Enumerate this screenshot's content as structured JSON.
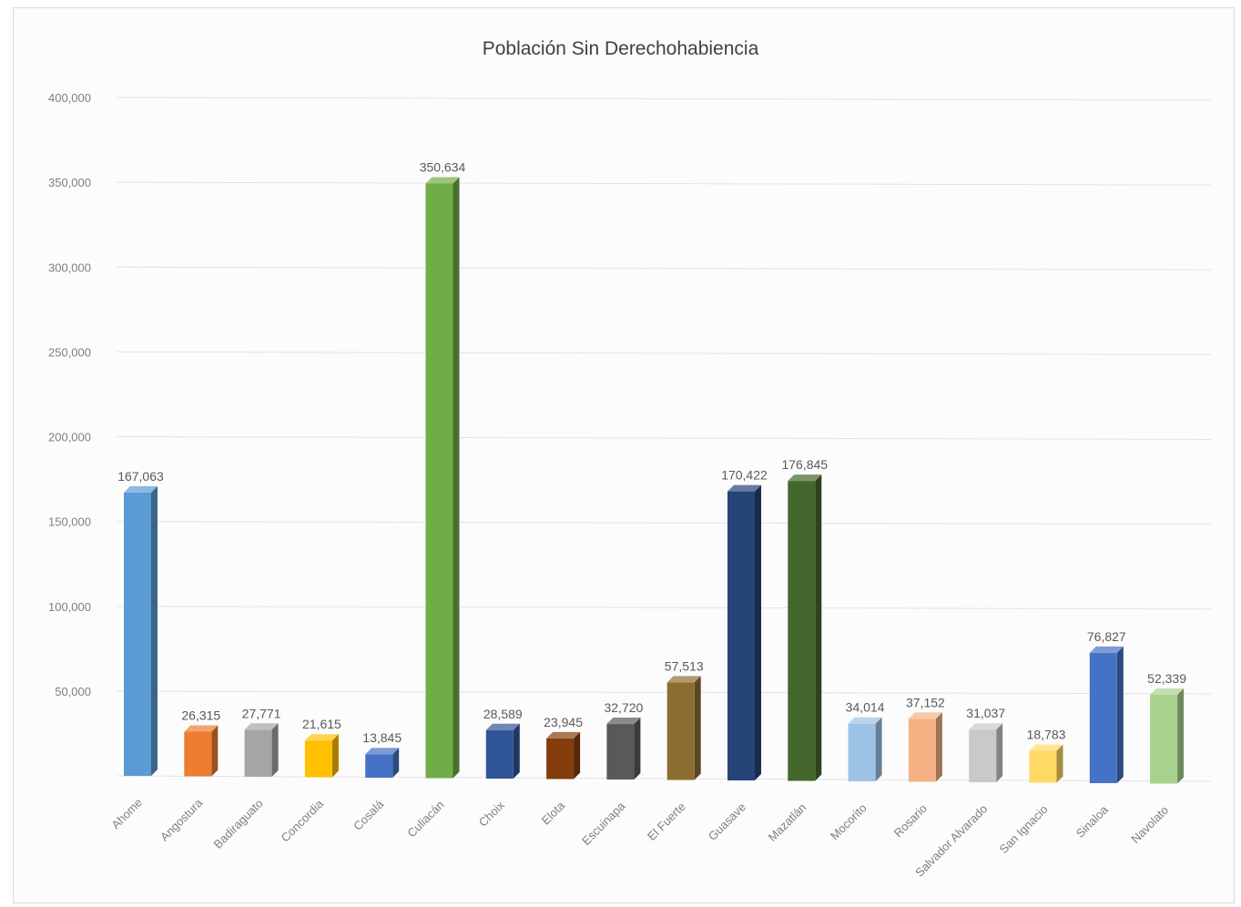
{
  "chart_data": {
    "type": "bar",
    "title": "Población Sin Derechohabiencia",
    "categories": [
      "Ahome",
      "Angostura",
      "Badiraguato",
      "Concordia",
      "Cosalá",
      "Culiacán",
      "Choix",
      "Elota",
      "Escuinapa",
      "El Fuerte",
      "Guasave",
      "Mazatlán",
      "Mocorito",
      "Rosario",
      "Salvador Alvarado",
      "San Ignacio",
      "Sinaloa",
      "Navolato"
    ],
    "values": [
      167063,
      26315,
      27771,
      21615,
      13845,
      350634,
      28589,
      23945,
      32720,
      57513,
      170422,
      176845,
      34014,
      37152,
      31037,
      18783,
      76827,
      52339
    ],
    "data_labels": [
      "167,063",
      "26,315",
      "27,771",
      "21,615",
      "13,845",
      "350,634",
      "28,589",
      "23,945",
      "32,720",
      "57,513",
      "170,422",
      "176,845",
      "34,014",
      "37,152",
      "31,037",
      "18,783",
      "76,827",
      "52,339"
    ],
    "y_ticks": [
      "50,000",
      "100,000",
      "150,000",
      "200,000",
      "250,000",
      "300,000",
      "350,000",
      "400,000"
    ],
    "y_tick_values": [
      50000,
      100000,
      150000,
      200000,
      250000,
      300000,
      350000,
      400000
    ],
    "ylim": [
      0,
      400000
    ],
    "grid": true,
    "colors": [
      "#5b9bd5",
      "#ed7d31",
      "#a5a5a5",
      "#ffc000",
      "#4472c4",
      "#70ad47",
      "#2f5597",
      "#843c0c",
      "#595959",
      "#8c6d31",
      "#264478",
      "#43682b",
      "#9dc3e6",
      "#f4b183",
      "#c9c9c9",
      "#ffd966",
      "#4472c4",
      "#a9d18e"
    ]
  }
}
